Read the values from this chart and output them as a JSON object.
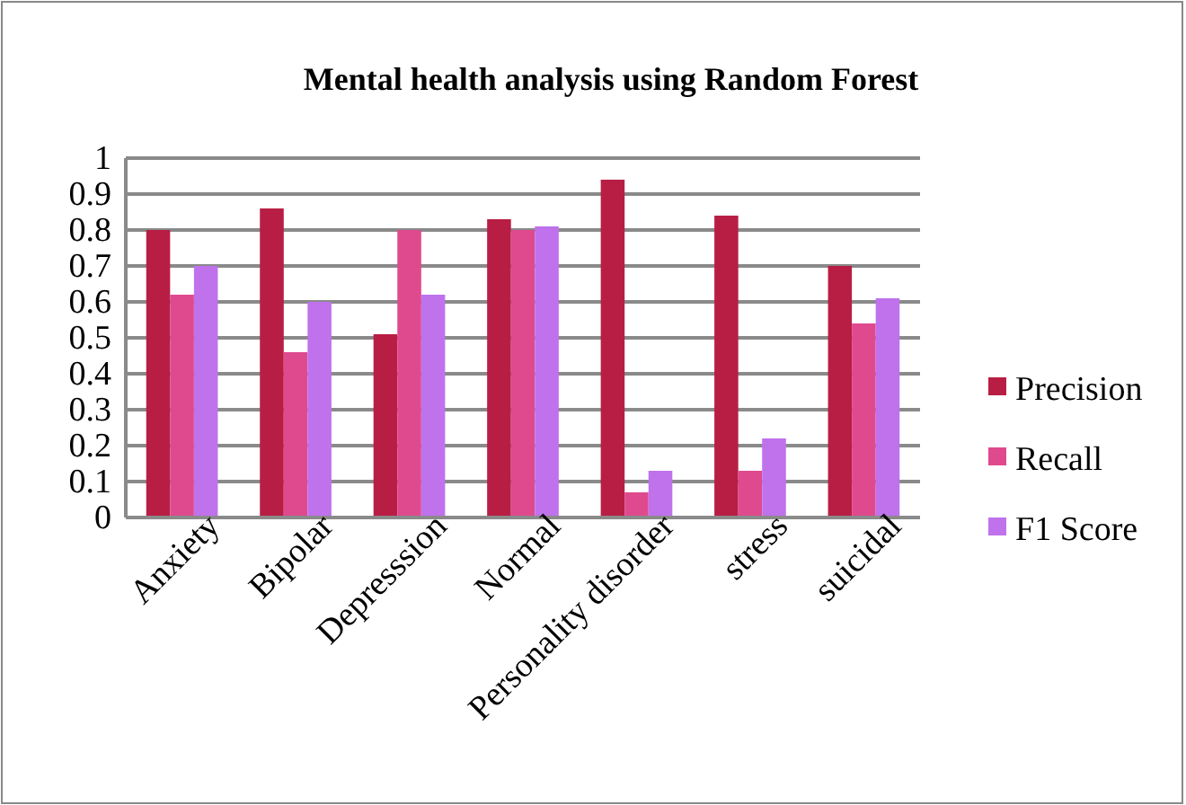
{
  "chart_data": {
    "type": "bar",
    "title": "Mental health analysis using Random Forest",
    "categories": [
      "Anxiety",
      "Bipolar",
      "Depresssion",
      "Normal",
      "Personality disorder",
      "stress",
      "suicidal"
    ],
    "series": [
      {
        "name": "Precision",
        "color": "#b81e44",
        "values": [
          0.8,
          0.86,
          0.51,
          0.83,
          0.94,
          0.84,
          0.7
        ]
      },
      {
        "name": "Recall",
        "color": "#df4a8e",
        "values": [
          0.62,
          0.46,
          0.8,
          0.8,
          0.07,
          0.13,
          0.54
        ]
      },
      {
        "name": "F1 Score",
        "color": "#bf72ec",
        "values": [
          0.7,
          0.6,
          0.62,
          0.81,
          0.13,
          0.22,
          0.61
        ]
      }
    ],
    "ylim": [
      0,
      1
    ],
    "yticks": [
      0,
      0.1,
      0.2,
      0.3,
      0.4,
      0.5,
      0.6,
      0.7,
      0.8,
      0.9,
      1
    ],
    "grid": "y",
    "legend": "right"
  }
}
